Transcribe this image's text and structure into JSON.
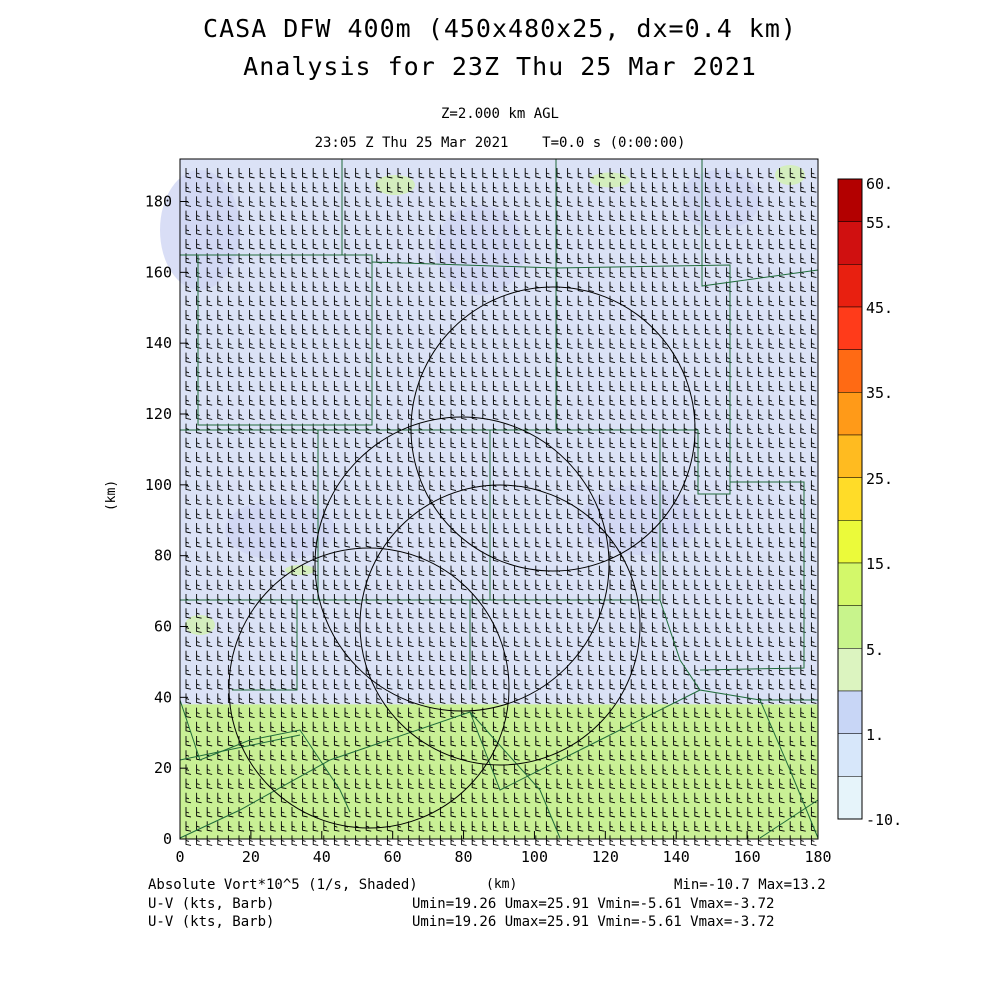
{
  "header": {
    "title_line1": "CASA DFW 400m (450x480x25, dx=0.4 km)",
    "title_line2": "Analysis for 23Z Thu 25 Mar 2021",
    "level": "Z=2.000 km AGL",
    "time": "23:05 Z Thu 25 Mar 2021    T=0.0 s (0:00:00)"
  },
  "axes": {
    "x_ticks": [
      "0",
      "20",
      "40",
      "60",
      "80",
      "100",
      "120",
      "140",
      "160",
      "180"
    ],
    "y_ticks": [
      "0",
      "20",
      "40",
      "60",
      "80",
      "100",
      "120",
      "140",
      "160",
      "180"
    ],
    "x_unit": "(km)",
    "y_unit": "(km)",
    "x_range": [
      0,
      180
    ],
    "y_range": [
      0,
      192
    ]
  },
  "colorbar": {
    "labels": [
      "60.",
      "55.",
      "45.",
      "35.",
      "25.",
      "15.",
      "5.",
      "1.",
      "-10."
    ],
    "colors": [
      "#b30000",
      "#d01010",
      "#e82010",
      "#ff3b1a",
      "#ff6a14",
      "#ff9a18",
      "#ffbb20",
      "#ffdc28",
      "#ebfa3a",
      "#d3f86a",
      "#c8f48c",
      "#dcf4c0",
      "#c8d6f6",
      "#d7e7fa",
      "#e6f4fa"
    ]
  },
  "footer": {
    "field_label": "Absolute Vort*10^5 (1/s, Shaded)",
    "field_unit": "(km)",
    "field_range": "Min=-10.7 Max=13.2",
    "wind1_label": "U-V (kts, Barb)",
    "wind1_range": "Umin=19.26 Umax=25.91 Vmin=-5.61 Vmax=-3.72",
    "wind2_label": "U-V (kts, Barb)",
    "wind2_range": "Umin=19.26 Umax=25.91 Vmin=-5.61 Vmax=-3.72"
  },
  "map": {
    "field_colors": {
      "north": "#dbe2f6",
      "south": "#c9f095",
      "patch_blue": "#cfd6f4",
      "patch_green": "#d3efb8"
    },
    "radar_ring_color": "#000000",
    "county_line_color": "#1f6b3a",
    "barb_color": "#000000"
  }
}
